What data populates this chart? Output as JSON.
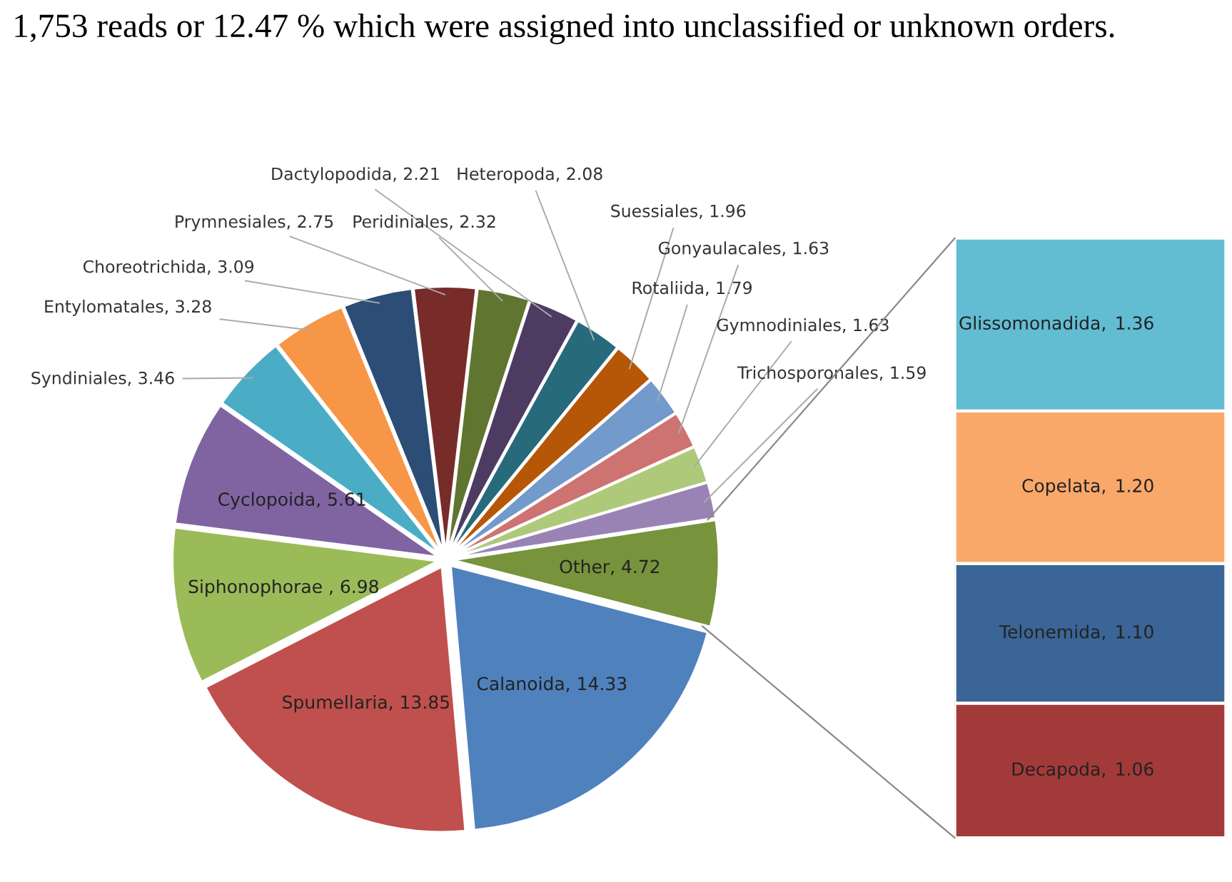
{
  "chart_data": [
    {
      "type": "pie",
      "annotations": [
        "1,753 reads or 12.47 % which were assigned into unclassified or unknown orders."
      ],
      "categories": [
        "Dactylopodida",
        "Heteropoda",
        "Suessiales",
        "Rotaliida",
        "Gonyaulacales",
        "Gymnodiniales",
        "Trichosporonales",
        "Other",
        "Calanoida",
        "Spumellaria",
        "Siphonophorae ",
        "Cyclopoida",
        "Syndiniales",
        "Entylomatales",
        "Choreotrichida",
        "Prymnesiales",
        "Peridiniales"
      ],
      "values": [
        2.21,
        2.08,
        1.96,
        1.79,
        1.63,
        1.63,
        1.59,
        4.72,
        14.33,
        13.85,
        6.98,
        5.61,
        3.46,
        3.28,
        3.09,
        2.75,
        2.32
      ],
      "value_labels": [
        "2.21",
        "2.08",
        "1.96",
        "1.79",
        "1.63",
        "1.63",
        "1.59",
        "4.72",
        "14.33",
        "13.85",
        "6.98",
        "5.61",
        "3.46",
        "3.28",
        "3.09",
        "2.75",
        "2.32"
      ],
      "colors": [
        "#4d3b62",
        "#276a7c",
        "#b65708",
        "#729aca",
        "#cd7371",
        "#afc97a",
        "#9983b5",
        "#77933c",
        "#4f81bd",
        "#c0504d",
        "#9bbb59",
        "#8064a2",
        "#4bacc6",
        "#f79646",
        "#2c4d75",
        "#772c2a",
        "#5f7530"
      ]
    },
    {
      "type": "bar",
      "stacked": true,
      "categories": [
        null
      ],
      "series": [
        {
          "name": "Decapoda,",
          "color": "#a33a3a",
          "values": [
            1.06
          ],
          "value_labels": [
            "1.06"
          ]
        },
        {
          "name": "Telonemida,",
          "color": "#3a6596",
          "values": [
            1.1
          ],
          "value_labels": [
            "1.10"
          ]
        },
        {
          "name": "Copelata,",
          "color": "#f9a86a",
          "values": [
            1.2
          ],
          "value_labels": [
            "1.20"
          ]
        },
        {
          "name": "Glissomonadida,",
          "color": "#62bdd3",
          "values": [
            1.36
          ],
          "value_labels": [
            "1.36"
          ]
        }
      ],
      "data_labels": true
    }
  ]
}
